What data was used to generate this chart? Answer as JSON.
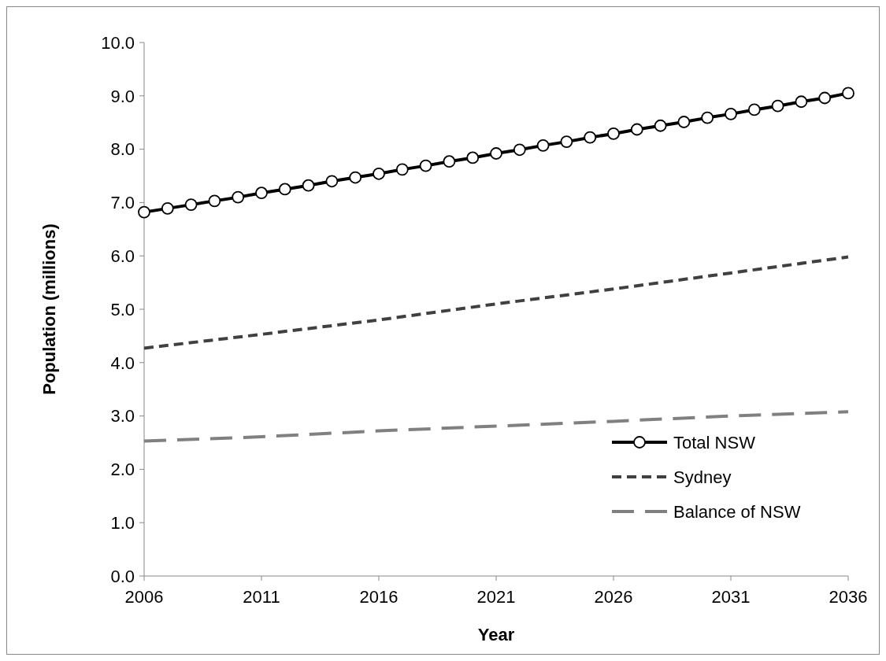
{
  "chart_data": {
    "type": "line",
    "xlabel": "Year",
    "ylabel": "Population (millions)",
    "xlim": [
      2006,
      2036
    ],
    "xticks": [
      2006,
      2011,
      2016,
      2021,
      2026,
      2031,
      2036
    ],
    "ylim": [
      0,
      10
    ],
    "yticks": [
      {
        "value": 0,
        "label": "0.0"
      },
      {
        "value": 1,
        "label": "1.0"
      },
      {
        "value": 2,
        "label": "2.0"
      },
      {
        "value": 3,
        "label": "3.0"
      },
      {
        "value": 4,
        "label": "4.0"
      },
      {
        "value": 5,
        "label": "5.0"
      },
      {
        "value": 6,
        "label": "6.0"
      },
      {
        "value": 7,
        "label": "7.0"
      },
      {
        "value": 8,
        "label": "8.0"
      },
      {
        "value": 9,
        "label": "9.0"
      },
      {
        "value": 10,
        "label": "10.0"
      }
    ],
    "grid": false,
    "legend": "bottom right",
    "series": [
      {
        "name": "Total NSW",
        "color": "#000000",
        "marker": "circle",
        "line_style": "solid",
        "x": [
          2006,
          2007,
          2008,
          2009,
          2010,
          2011,
          2012,
          2013,
          2014,
          2015,
          2016,
          2017,
          2018,
          2019,
          2020,
          2021,
          2022,
          2023,
          2024,
          2025,
          2026,
          2027,
          2028,
          2029,
          2030,
          2031,
          2032,
          2033,
          2034,
          2035,
          2036
        ],
        "values": [
          6.82,
          6.89,
          6.96,
          7.03,
          7.1,
          7.18,
          7.25,
          7.32,
          7.4,
          7.47,
          7.54,
          7.62,
          7.69,
          7.77,
          7.84,
          7.92,
          7.99,
          8.07,
          8.14,
          8.22,
          8.29,
          8.37,
          8.44,
          8.51,
          8.59,
          8.66,
          8.74,
          8.81,
          8.89,
          8.96,
          9.05
        ]
      },
      {
        "name": "Sydney",
        "color": "#404040",
        "marker": "none",
        "line_style": "dashed",
        "x": [
          2006,
          2011,
          2016,
          2021,
          2026,
          2031,
          2036
        ],
        "values": [
          4.27,
          4.53,
          4.8,
          5.1,
          5.38,
          5.68,
          5.98
        ]
      },
      {
        "name": "Balance of NSW",
        "color": "#808080",
        "marker": "none",
        "line_style": "longdash",
        "x": [
          2006,
          2011,
          2016,
          2021,
          2026,
          2031,
          2036
        ],
        "values": [
          2.53,
          2.61,
          2.72,
          2.81,
          2.9,
          3.0,
          3.08
        ]
      }
    ]
  }
}
